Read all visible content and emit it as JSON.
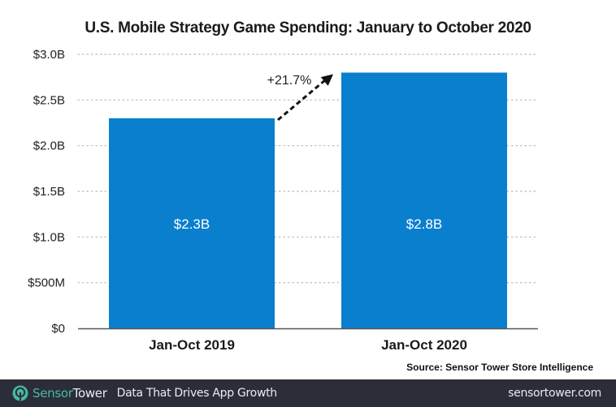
{
  "chart_data": {
    "type": "bar",
    "title": "U.S. Mobile Strategy Game Spending: January to October 2020",
    "categories": [
      "Jan-Oct 2019",
      "Jan-Oct 2020"
    ],
    "values": [
      2.3,
      2.8
    ],
    "value_unit": "USD billions",
    "data_labels": [
      "$2.3B",
      "$2.8B"
    ],
    "xlabel": "",
    "ylabel": "",
    "ylim": [
      0,
      3.0
    ],
    "yticks": [
      0,
      0.5,
      1.0,
      1.5,
      2.0,
      2.5,
      3.0
    ],
    "ytick_labels": [
      "$0",
      "$500M",
      "$1.0B",
      "$1.5B",
      "$2.0B",
      "$2.5B",
      "$3.0B"
    ],
    "grid": true,
    "grid_style": "dotted horizontal",
    "bar_color": "#0a7fce",
    "annotations": [
      {
        "text": "+21.7%",
        "type": "dashed-arrow",
        "from_category": "Jan-Oct 2019",
        "to_category": "Jan-Oct 2020"
      }
    ],
    "source": "Source: Sensor Tower Store Intelligence"
  },
  "footer": {
    "brand_part1": "Sensor",
    "brand_part2": "Tower",
    "tagline": "Data That Drives App Growth",
    "site": "sensortower.com",
    "background": "#2b2e38",
    "brand_accent": "#46b9a6"
  }
}
